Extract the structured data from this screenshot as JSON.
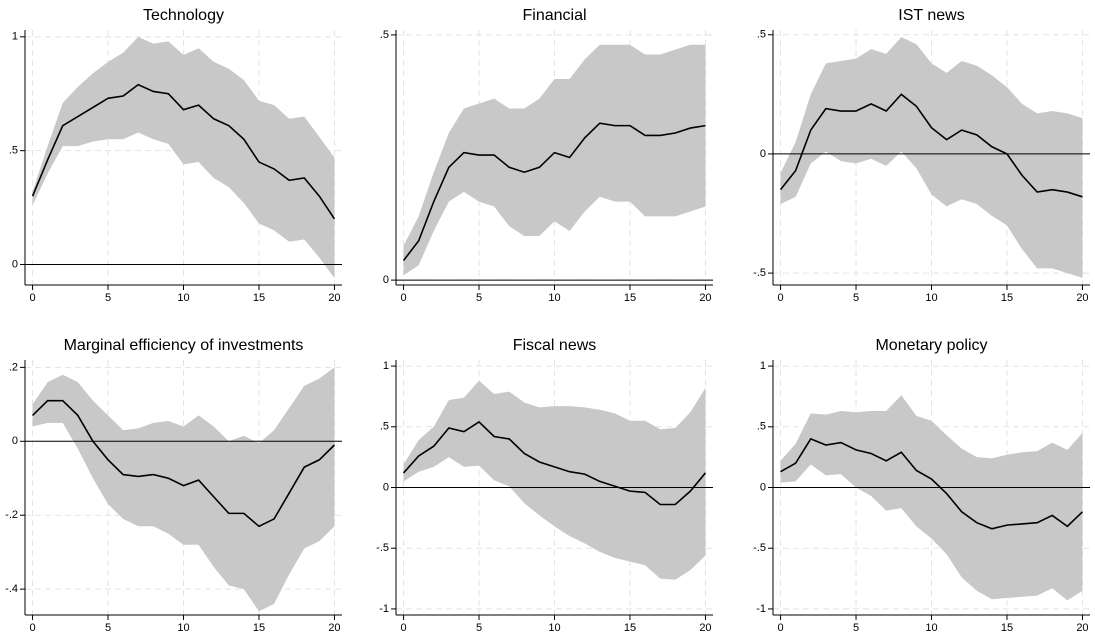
{
  "chart_data": [
    {
      "type": "line",
      "title": "Technology",
      "x": [
        0,
        1,
        2,
        3,
        4,
        5,
        6,
        7,
        8,
        9,
        10,
        11,
        12,
        13,
        14,
        15,
        16,
        17,
        18,
        19,
        20
      ],
      "values": [
        0.3,
        0.46,
        0.61,
        0.65,
        0.69,
        0.73,
        0.74,
        0.79,
        0.76,
        0.75,
        0.68,
        0.7,
        0.64,
        0.61,
        0.55,
        0.45,
        0.42,
        0.37,
        0.38,
        0.3,
        0.2
      ],
      "band_upper": [
        0.32,
        0.52,
        0.71,
        0.78,
        0.84,
        0.89,
        0.93,
        1.0,
        0.97,
        0.98,
        0.92,
        0.95,
        0.89,
        0.86,
        0.81,
        0.72,
        0.7,
        0.64,
        0.65,
        0.56,
        0.47
      ],
      "band_lower": [
        0.26,
        0.4,
        0.52,
        0.52,
        0.54,
        0.55,
        0.55,
        0.58,
        0.55,
        0.53,
        0.44,
        0.45,
        0.38,
        0.34,
        0.27,
        0.18,
        0.15,
        0.1,
        0.11,
        0.03,
        -0.06
      ],
      "color": "#000000",
      "band_color": "#c8c8c8",
      "hline": 0,
      "grid": true,
      "xlim": [
        -0.5,
        20.5
      ],
      "xticks": [
        0,
        5,
        10,
        15,
        20
      ],
      "ylim": [
        -0.09,
        1.03
      ],
      "yticks": [
        0,
        {
          "value": 0.5,
          "label": ".5"
        },
        1
      ]
    },
    {
      "type": "line",
      "title": "Financial",
      "x": [
        0,
        1,
        2,
        3,
        4,
        5,
        6,
        7,
        8,
        9,
        10,
        11,
        12,
        13,
        14,
        15,
        16,
        17,
        18,
        19,
        20
      ],
      "values": [
        0.04,
        0.08,
        0.16,
        0.23,
        0.26,
        0.255,
        0.255,
        0.23,
        0.22,
        0.23,
        0.26,
        0.25,
        0.29,
        0.32,
        0.315,
        0.315,
        0.295,
        0.295,
        0.3,
        0.31,
        0.315
      ],
      "band_upper": [
        0.07,
        0.13,
        0.22,
        0.3,
        0.35,
        0.36,
        0.37,
        0.35,
        0.35,
        0.37,
        0.41,
        0.41,
        0.45,
        0.48,
        0.48,
        0.48,
        0.46,
        0.46,
        0.47,
        0.48,
        0.48
      ],
      "band_lower": [
        0.01,
        0.03,
        0.1,
        0.16,
        0.18,
        0.16,
        0.15,
        0.11,
        0.09,
        0.09,
        0.12,
        0.1,
        0.14,
        0.17,
        0.16,
        0.16,
        0.13,
        0.13,
        0.13,
        0.14,
        0.15
      ],
      "color": "#000000",
      "band_color": "#c8c8c8",
      "hline": 0,
      "grid": true,
      "xlim": [
        -0.5,
        20.5
      ],
      "xticks": [
        0,
        5,
        10,
        15,
        20
      ],
      "ylim": [
        -0.01,
        0.51
      ],
      "yticks": [
        0,
        {
          "value": 0.5,
          "label": ".5"
        }
      ]
    },
    {
      "type": "line",
      "title": "IST news",
      "x": [
        0,
        1,
        2,
        3,
        4,
        5,
        6,
        7,
        8,
        9,
        10,
        11,
        12,
        13,
        14,
        15,
        16,
        17,
        18,
        19,
        20
      ],
      "values": [
        -0.15,
        -0.07,
        0.1,
        0.19,
        0.18,
        0.18,
        0.21,
        0.18,
        0.25,
        0.2,
        0.11,
        0.06,
        0.1,
        0.08,
        0.03,
        0.0,
        -0.09,
        -0.16,
        -0.15,
        -0.16,
        -0.18
      ],
      "band_upper": [
        -0.08,
        0.05,
        0.25,
        0.38,
        0.39,
        0.4,
        0.44,
        0.42,
        0.49,
        0.46,
        0.38,
        0.34,
        0.39,
        0.37,
        0.33,
        0.28,
        0.21,
        0.17,
        0.18,
        0.17,
        0.15
      ],
      "band_lower": [
        -0.21,
        -0.18,
        -0.04,
        0.01,
        -0.03,
        -0.04,
        -0.02,
        -0.05,
        0.01,
        -0.06,
        -0.17,
        -0.22,
        -0.19,
        -0.21,
        -0.26,
        -0.3,
        -0.4,
        -0.48,
        -0.48,
        -0.5,
        -0.52
      ],
      "color": "#000000",
      "band_color": "#c8c8c8",
      "hline": 0,
      "grid": true,
      "xlim": [
        -0.5,
        20.5
      ],
      "xticks": [
        0,
        5,
        10,
        15,
        20
      ],
      "ylim": [
        -0.55,
        0.52
      ],
      "yticks": [
        {
          "value": -0.5,
          "label": "-.5"
        },
        0,
        {
          "value": 0.5,
          "label": ".5"
        }
      ]
    },
    {
      "type": "line",
      "title": "Marginal efficiency of investments",
      "x": [
        0,
        1,
        2,
        3,
        4,
        5,
        6,
        7,
        8,
        9,
        10,
        11,
        12,
        13,
        14,
        15,
        16,
        17,
        18,
        19,
        20
      ],
      "values": [
        0.07,
        0.11,
        0.11,
        0.07,
        0.0,
        -0.05,
        -0.09,
        -0.095,
        -0.09,
        -0.1,
        -0.12,
        -0.105,
        -0.15,
        -0.195,
        -0.195,
        -0.23,
        -0.21,
        -0.14,
        -0.07,
        -0.05,
        -0.01
      ],
      "band_upper": [
        0.1,
        0.16,
        0.18,
        0.16,
        0.11,
        0.07,
        0.03,
        0.035,
        0.05,
        0.055,
        0.04,
        0.07,
        0.04,
        0.0,
        0.015,
        -0.005,
        0.03,
        0.09,
        0.15,
        0.17,
        0.2
      ],
      "band_lower": [
        0.04,
        0.05,
        0.05,
        -0.02,
        -0.1,
        -0.17,
        -0.21,
        -0.23,
        -0.23,
        -0.25,
        -0.28,
        -0.28,
        -0.34,
        -0.39,
        -0.4,
        -0.46,
        -0.44,
        -0.36,
        -0.29,
        -0.27,
        -0.23
      ],
      "color": "#000000",
      "band_color": "#c8c8c8",
      "hline": 0,
      "grid": true,
      "xlim": [
        -0.5,
        20.5
      ],
      "xticks": [
        0,
        5,
        10,
        15,
        20
      ],
      "ylim": [
        -0.47,
        0.22
      ],
      "yticks": [
        {
          "value": -0.4,
          "label": "-.4"
        },
        {
          "value": -0.2,
          "label": "-.2"
        },
        0,
        {
          "value": 0.2,
          "label": ".2"
        }
      ]
    },
    {
      "type": "line",
      "title": "Fiscal news",
      "x": [
        0,
        1,
        2,
        3,
        4,
        5,
        6,
        7,
        8,
        9,
        10,
        11,
        12,
        13,
        14,
        15,
        16,
        17,
        18,
        19,
        20
      ],
      "values": [
        0.12,
        0.26,
        0.34,
        0.49,
        0.46,
        0.54,
        0.42,
        0.4,
        0.28,
        0.21,
        0.17,
        0.13,
        0.11,
        0.05,
        0.01,
        -0.03,
        -0.04,
        -0.14,
        -0.14,
        -0.03,
        0.12
      ],
      "band_upper": [
        0.19,
        0.39,
        0.5,
        0.72,
        0.74,
        0.88,
        0.77,
        0.79,
        0.7,
        0.66,
        0.67,
        0.67,
        0.66,
        0.64,
        0.61,
        0.55,
        0.55,
        0.48,
        0.49,
        0.62,
        0.82
      ],
      "band_lower": [
        0.05,
        0.13,
        0.17,
        0.25,
        0.17,
        0.18,
        0.06,
        0.01,
        -0.13,
        -0.23,
        -0.32,
        -0.4,
        -0.46,
        -0.53,
        -0.58,
        -0.61,
        -0.64,
        -0.75,
        -0.76,
        -0.68,
        -0.56
      ],
      "color": "#000000",
      "band_color": "#c8c8c8",
      "hline": 0,
      "grid": true,
      "xlim": [
        -0.5,
        20.5
      ],
      "xticks": [
        0,
        5,
        10,
        15,
        20
      ],
      "ylim": [
        -1.05,
        1.05
      ],
      "yticks": [
        -1,
        {
          "value": -0.5,
          "label": "-.5"
        },
        0,
        {
          "value": 0.5,
          "label": ".5"
        },
        1
      ]
    },
    {
      "type": "line",
      "title": "Monetary policy",
      "x": [
        0,
        1,
        2,
        3,
        4,
        5,
        6,
        7,
        8,
        9,
        10,
        11,
        12,
        13,
        14,
        15,
        16,
        17,
        18,
        19,
        20
      ],
      "values": [
        0.13,
        0.2,
        0.4,
        0.35,
        0.37,
        0.31,
        0.28,
        0.22,
        0.29,
        0.14,
        0.07,
        -0.05,
        -0.2,
        -0.29,
        -0.34,
        -0.31,
        -0.3,
        -0.29,
        -0.23,
        -0.32,
        -0.2
      ],
      "band_upper": [
        0.22,
        0.36,
        0.61,
        0.6,
        0.63,
        0.62,
        0.63,
        0.63,
        0.76,
        0.59,
        0.55,
        0.43,
        0.32,
        0.25,
        0.24,
        0.27,
        0.29,
        0.3,
        0.37,
        0.31,
        0.45
      ],
      "band_lower": [
        0.04,
        0.05,
        0.19,
        0.1,
        0.11,
        0.0,
        -0.07,
        -0.19,
        -0.17,
        -0.32,
        -0.42,
        -0.55,
        -0.74,
        -0.85,
        -0.92,
        -0.91,
        -0.9,
        -0.89,
        -0.83,
        -0.93,
        -0.85
      ],
      "color": "#000000",
      "band_color": "#c8c8c8",
      "hline": 0,
      "grid": true,
      "xlim": [
        -0.5,
        20.5
      ],
      "xticks": [
        0,
        5,
        10,
        15,
        20
      ],
      "ylim": [
        -1.05,
        1.05
      ],
      "yticks": [
        -1,
        {
          "value": -0.5,
          "label": "-.5"
        },
        0,
        {
          "value": 0.5,
          "label": ".5"
        },
        1
      ]
    }
  ]
}
